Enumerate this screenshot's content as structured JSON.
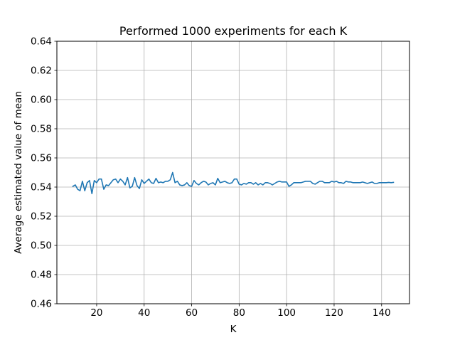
{
  "chart_data": {
    "type": "line",
    "title": "Performed 1000 experiments for each K",
    "xlabel": "K",
    "ylabel": "Average estimated value of mean",
    "xlim": [
      3.25,
      151.75
    ],
    "ylim": [
      0.46,
      0.64
    ],
    "xticks": [
      20,
      40,
      60,
      80,
      100,
      120,
      140
    ],
    "yticks": [
      0.46,
      0.48,
      0.5,
      0.52,
      0.54,
      0.56,
      0.58,
      0.6,
      0.62,
      0.64
    ],
    "ytick_labels": [
      "0.46",
      "0.48",
      "0.50",
      "0.52",
      "0.54",
      "0.56",
      "0.58",
      "0.60",
      "0.62",
      "0.64"
    ],
    "grid": true,
    "line_color": "#1f77b4",
    "x": [
      10,
      11,
      12,
      13,
      14,
      15,
      16,
      17,
      18,
      19,
      20,
      21,
      22,
      23,
      24,
      25,
      26,
      27,
      28,
      29,
      30,
      31,
      32,
      33,
      34,
      35,
      36,
      37,
      38,
      39,
      40,
      41,
      42,
      43,
      44,
      45,
      46,
      47,
      48,
      49,
      50,
      51,
      52,
      53,
      54,
      55,
      56,
      57,
      58,
      59,
      60,
      61,
      62,
      63,
      64,
      65,
      66,
      67,
      68,
      69,
      70,
      71,
      72,
      73,
      74,
      75,
      76,
      77,
      78,
      79,
      80,
      81,
      82,
      83,
      84,
      85,
      86,
      87,
      88,
      89,
      90,
      91,
      92,
      93,
      94,
      95,
      96,
      97,
      98,
      99,
      100,
      101,
      102,
      103,
      104,
      105,
      106,
      107,
      108,
      109,
      110,
      111,
      112,
      113,
      114,
      115,
      116,
      117,
      118,
      119,
      120,
      121,
      122,
      123,
      124,
      125,
      126,
      127,
      128,
      129,
      130,
      131,
      132,
      133,
      134,
      135,
      136,
      137,
      138,
      139,
      140,
      141,
      142,
      143,
      144,
      145
    ],
    "y": [
      0.5405,
      0.5415,
      0.5385,
      0.5375,
      0.544,
      0.5375,
      0.543,
      0.5445,
      0.5355,
      0.5445,
      0.543,
      0.5455,
      0.5455,
      0.5385,
      0.5415,
      0.541,
      0.543,
      0.545,
      0.5455,
      0.543,
      0.5455,
      0.544,
      0.5415,
      0.5465,
      0.5395,
      0.5405,
      0.5465,
      0.541,
      0.539,
      0.545,
      0.5425,
      0.544,
      0.5455,
      0.543,
      0.5425,
      0.546,
      0.543,
      0.5435,
      0.543,
      0.544,
      0.544,
      0.545,
      0.55,
      0.543,
      0.544,
      0.5415,
      0.541,
      0.5415,
      0.543,
      0.541,
      0.5405,
      0.5445,
      0.5425,
      0.5415,
      0.543,
      0.544,
      0.5435,
      0.5415,
      0.5425,
      0.543,
      0.5415,
      0.546,
      0.543,
      0.5435,
      0.544,
      0.543,
      0.5425,
      0.543,
      0.5455,
      0.5455,
      0.542,
      0.5415,
      0.5425,
      0.542,
      0.543,
      0.543,
      0.542,
      0.543,
      0.5415,
      0.5425,
      0.5415,
      0.543,
      0.543,
      0.5425,
      0.5415,
      0.5425,
      0.5435,
      0.544,
      0.5435,
      0.5435,
      0.5435,
      0.5405,
      0.5415,
      0.543,
      0.543,
      0.543,
      0.543,
      0.5435,
      0.544,
      0.544,
      0.544,
      0.5425,
      0.542,
      0.543,
      0.544,
      0.544,
      0.543,
      0.543,
      0.543,
      0.544,
      0.5435,
      0.544,
      0.543,
      0.543,
      0.5425,
      0.544,
      0.5435,
      0.5435,
      0.543,
      0.543,
      0.543,
      0.543,
      0.5435,
      0.543,
      0.5425,
      0.543,
      0.5435,
      0.5425,
      0.5425,
      0.543,
      0.543,
      0.543,
      0.543,
      0.5432,
      0.543,
      0.5432
    ]
  }
}
